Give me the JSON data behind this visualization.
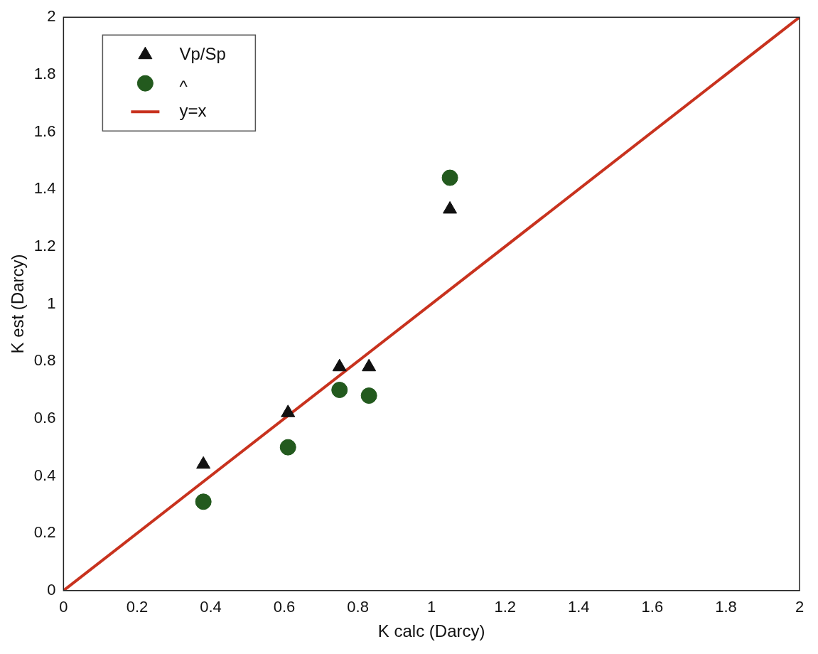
{
  "chart_data": {
    "type": "scatter",
    "xlabel": "K calc (Darcy)",
    "ylabel": "K est (Darcy)",
    "xlim": [
      0,
      2
    ],
    "ylim": [
      0,
      2
    ],
    "xticks": [
      0,
      0.2,
      0.4,
      0.6,
      0.8,
      1,
      1.2,
      1.4,
      1.6,
      1.8,
      2
    ],
    "yticks": [
      0,
      0.2,
      0.4,
      0.6,
      0.8,
      1,
      1.2,
      1.4,
      1.6,
      1.8,
      2
    ],
    "grid": false,
    "legend": "top left",
    "series": [
      {
        "name": "Vp/Sp",
        "color": "#111111",
        "marker": "triangle",
        "x": [
          0.38,
          0.61,
          0.75,
          0.83,
          1.05
        ],
        "values": [
          0.44,
          0.62,
          0.78,
          0.78,
          1.33
        ]
      },
      {
        "name": "^",
        "color": "#235a1e",
        "marker": "circle",
        "x": [
          0.38,
          0.61,
          0.75,
          0.83,
          1.05
        ],
        "values": [
          0.31,
          0.5,
          0.7,
          0.68,
          1.44
        ]
      },
      {
        "name": "y=x",
        "type": "line",
        "color": "#c8321e",
        "line_style": "solid",
        "x": [
          0,
          2
        ],
        "values": [
          0,
          2
        ]
      }
    ]
  }
}
